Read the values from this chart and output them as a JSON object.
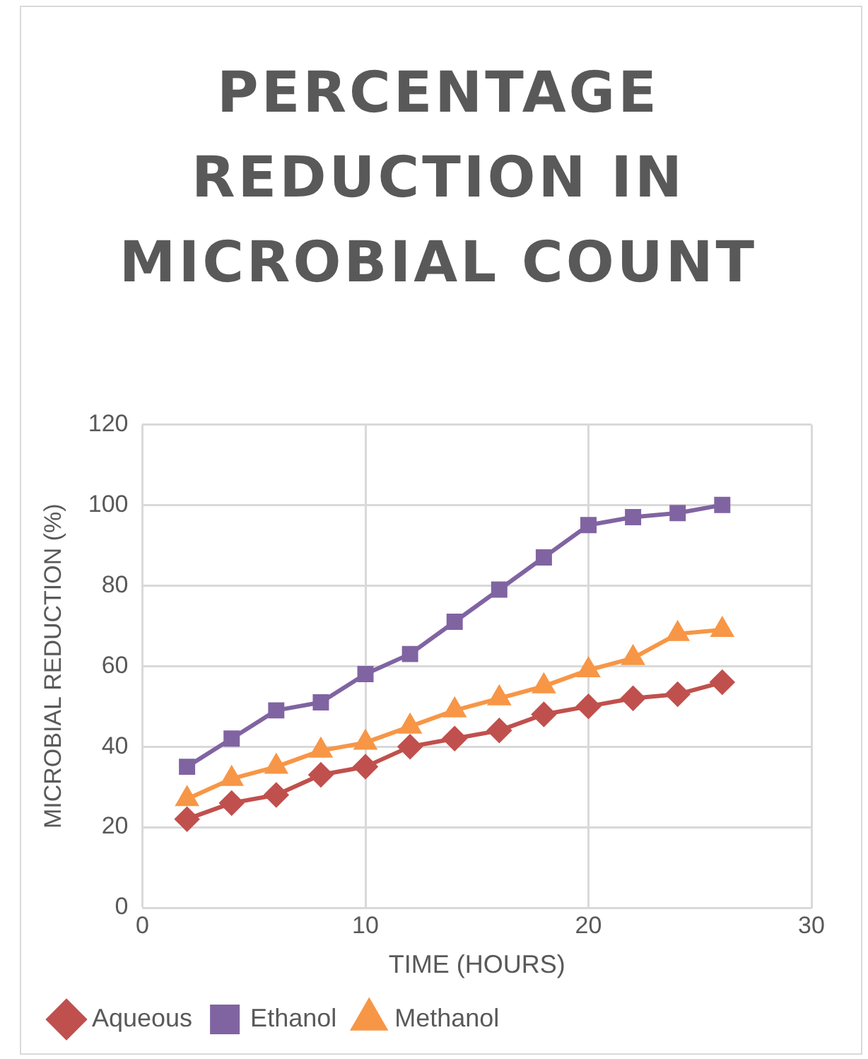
{
  "chart_data": {
    "type": "line",
    "title": "PERCENTAGE REDUCTION IN MICROBIAL COUNT",
    "xlabel": "TIME (HOURS)",
    "ylabel": "MICROBIAL REDUCTION (%)",
    "x": [
      2,
      4,
      6,
      8,
      10,
      12,
      14,
      16,
      18,
      20,
      22,
      24,
      26
    ],
    "xlim": [
      0,
      30
    ],
    "xticks": [
      0,
      10,
      20,
      30
    ],
    "ylim": [
      0,
      120
    ],
    "yticks": [
      0,
      20,
      40,
      60,
      80,
      100,
      120
    ],
    "grid": true,
    "legend": "bottom",
    "series": [
      {
        "name": "Aqueous",
        "color": "#c0504d",
        "marker": "diamond",
        "values": [
          22,
          26,
          28,
          33,
          35,
          40,
          42,
          44,
          48,
          50,
          52,
          53,
          56
        ]
      },
      {
        "name": "Ethanol",
        "color": "#8064a2",
        "marker": "square",
        "values": [
          35,
          42,
          49,
          51,
          58,
          63,
          71,
          79,
          87,
          95,
          97,
          98,
          100
        ]
      },
      {
        "name": "Methanol",
        "color": "#f79646",
        "marker": "triangle",
        "values": [
          27,
          32,
          35,
          39,
          41,
          45,
          49,
          52,
          55,
          59,
          62,
          68,
          69
        ]
      }
    ]
  }
}
